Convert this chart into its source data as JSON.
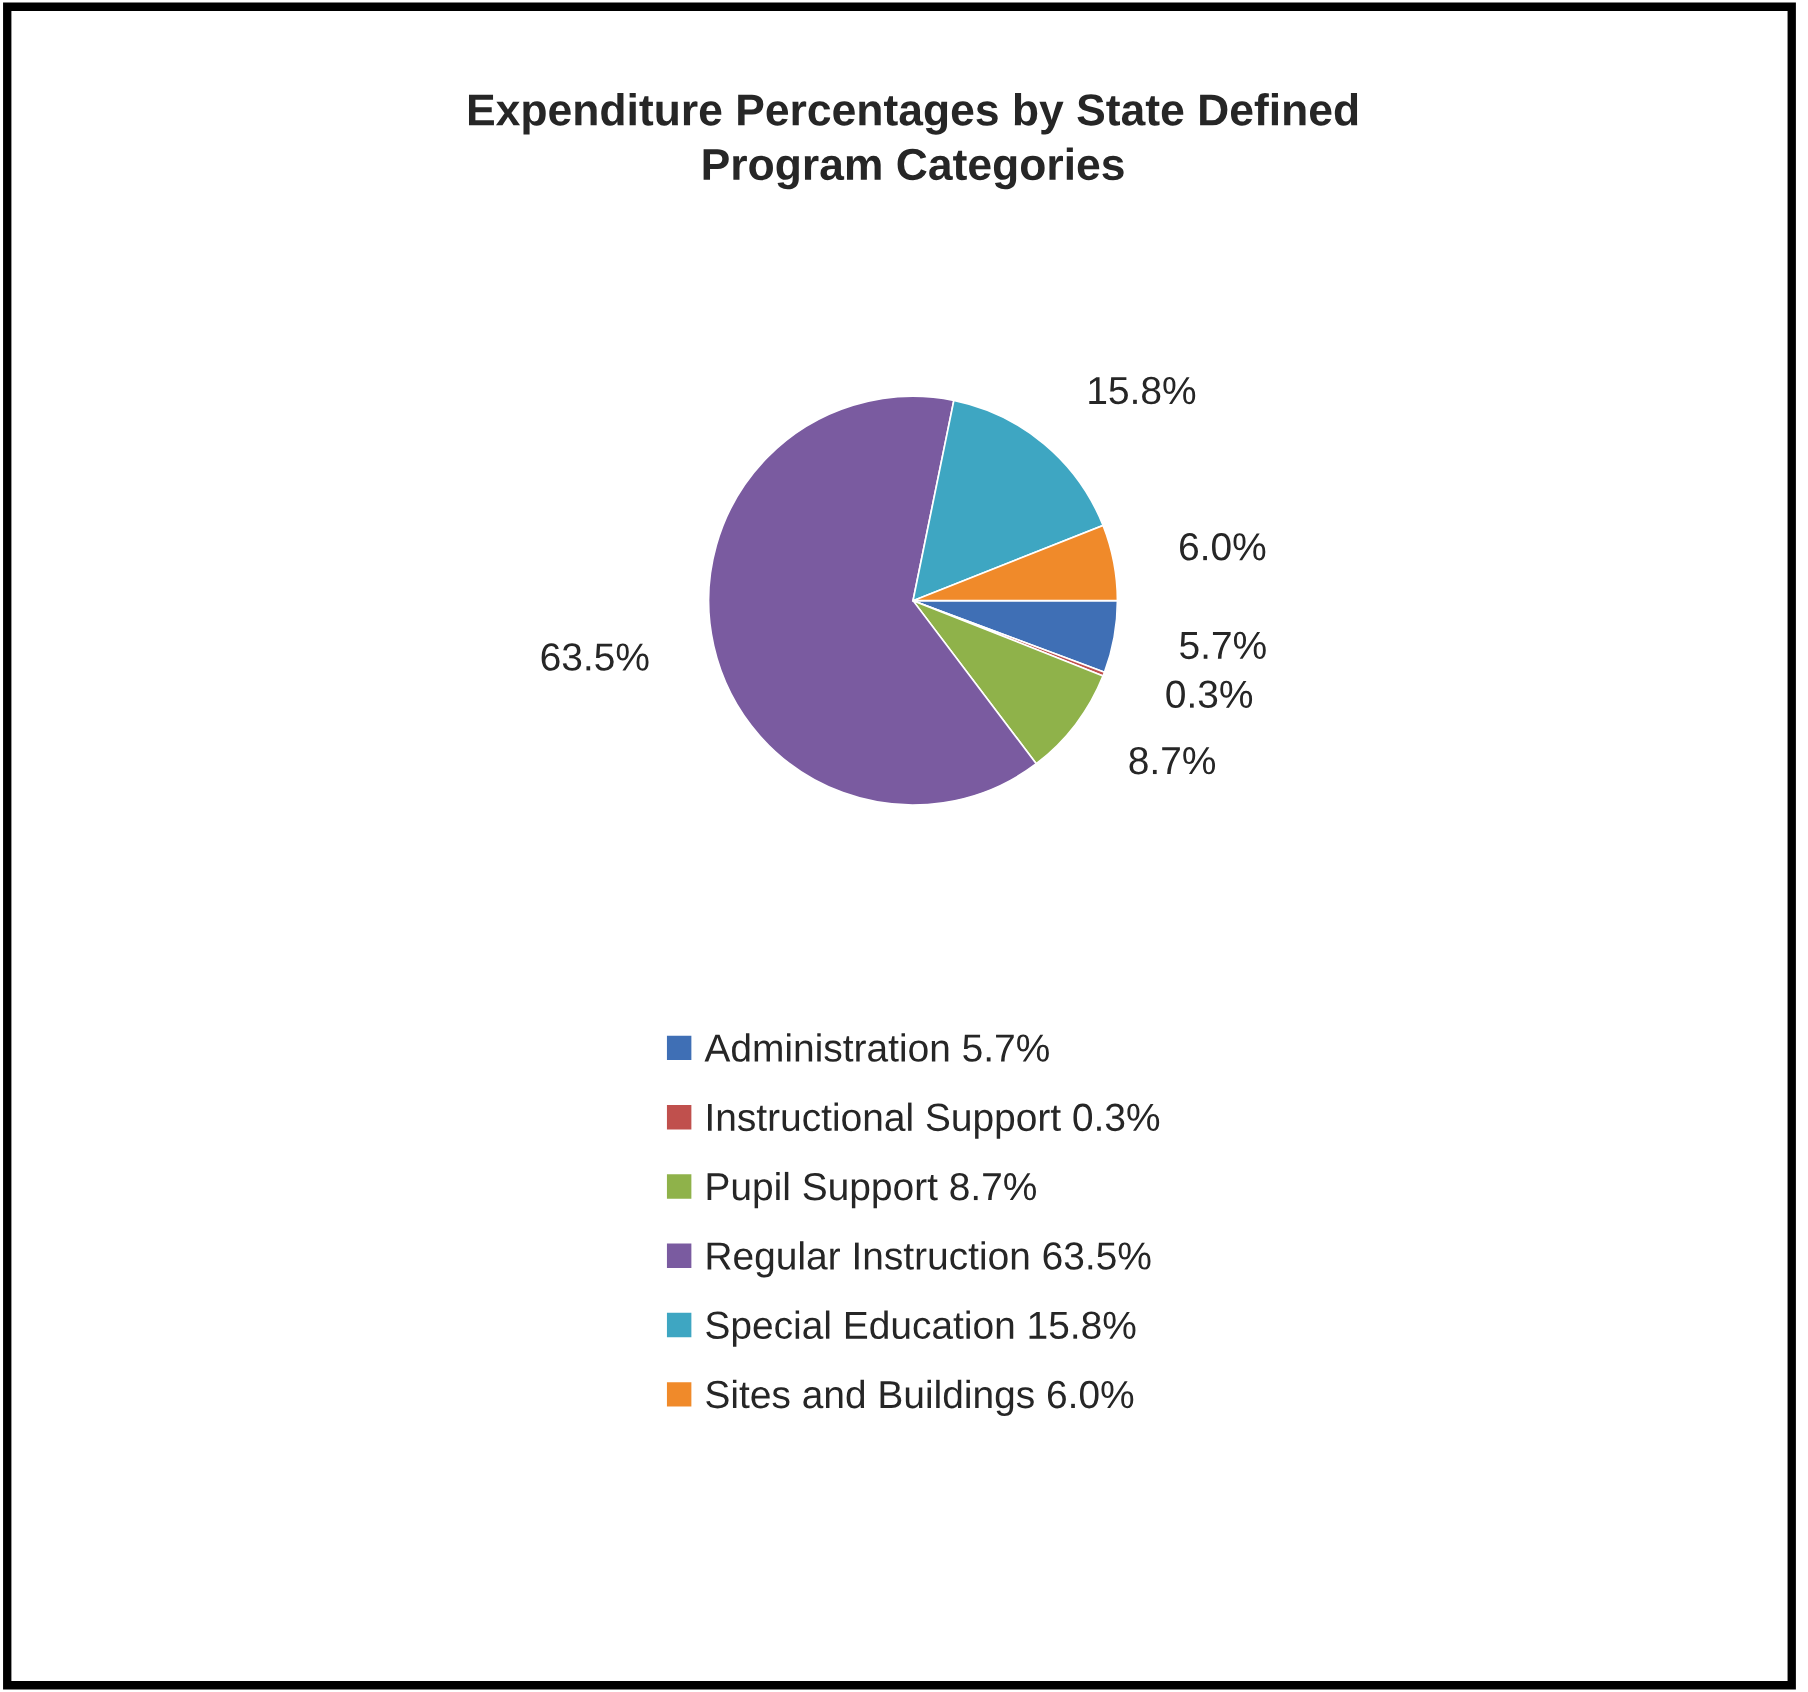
{
  "chart_data": {
    "type": "pie",
    "title": "Expenditure Percentages by State Defined\nProgram Categories",
    "categories": [
      "Administration",
      "Instructional Support",
      "Pupil Support",
      "Regular Instruction",
      "Special Education",
      "Sites and Buildings"
    ],
    "values": [
      5.7,
      0.3,
      8.7,
      63.5,
      15.8,
      6.0
    ],
    "value_labels": [
      "5.7%",
      "0.3%",
      "8.7%",
      "63.5%",
      "15.8%",
      "6.0%"
    ],
    "colors": [
      "#3f6fb5",
      "#c0504d",
      "#8fb24a",
      "#7a5ba0",
      "#3ea6c2",
      "#f08a2a"
    ],
    "legend": "bottom"
  }
}
